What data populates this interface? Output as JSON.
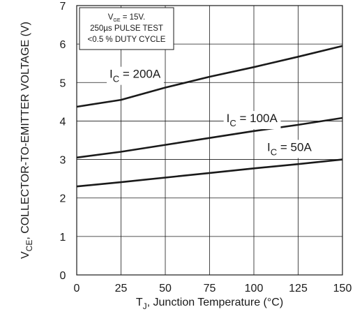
{
  "chart_data": {
    "type": "line",
    "xlabel": {
      "main": "T",
      "sub": "J",
      "rest": ", Junction Temperature (°C)"
    },
    "ylabel": {
      "main": "V",
      "sub": "CE",
      "rest": ", COLLECTOR-TO-EMITTER VOLTAGE (V)"
    },
    "xlim": [
      0,
      150
    ],
    "ylim": [
      0,
      7
    ],
    "x_ticks": [
      0,
      25,
      50,
      75,
      100,
      125,
      150
    ],
    "y_ticks": [
      0,
      1,
      2,
      3,
      4,
      5,
      6,
      7
    ],
    "grid": true,
    "series": [
      {
        "name": "200A",
        "x": [
          0,
          25,
          50,
          75,
          100,
          125,
          150
        ],
        "y": [
          4.37,
          4.55,
          4.87,
          5.15,
          5.4,
          5.67,
          5.95
        ]
      },
      {
        "name": "100A",
        "x": [
          0,
          25,
          50,
          75,
          100,
          125,
          150
        ],
        "y": [
          3.05,
          3.2,
          3.38,
          3.56,
          3.74,
          3.9,
          4.08
        ]
      },
      {
        "name": "50A",
        "x": [
          0,
          25,
          50,
          75,
          100,
          125,
          150
        ],
        "y": [
          2.3,
          2.41,
          2.53,
          2.65,
          2.77,
          2.88,
          3.0
        ]
      }
    ],
    "curve_labels": [
      {
        "series": "200A",
        "main": "I",
        "sub": "C",
        "rest": " = 200A"
      },
      {
        "series": "100A",
        "main": "I",
        "sub": "C",
        "rest": " = 100A"
      },
      {
        "series": "50A",
        "main": "I",
        "sub": "C",
        "rest": " = 50A"
      }
    ],
    "annotation": {
      "line1_main": "V",
      "line1_sub": "GE",
      "line1_rest": " = 15V.",
      "line2": "250µs PULSE TEST",
      "line3": "<0.5 % DUTY CYCLE"
    },
    "colors": {
      "series": "#1a1a1a",
      "grid": "#1a1a1a",
      "axes": "#1a1a1a"
    }
  }
}
